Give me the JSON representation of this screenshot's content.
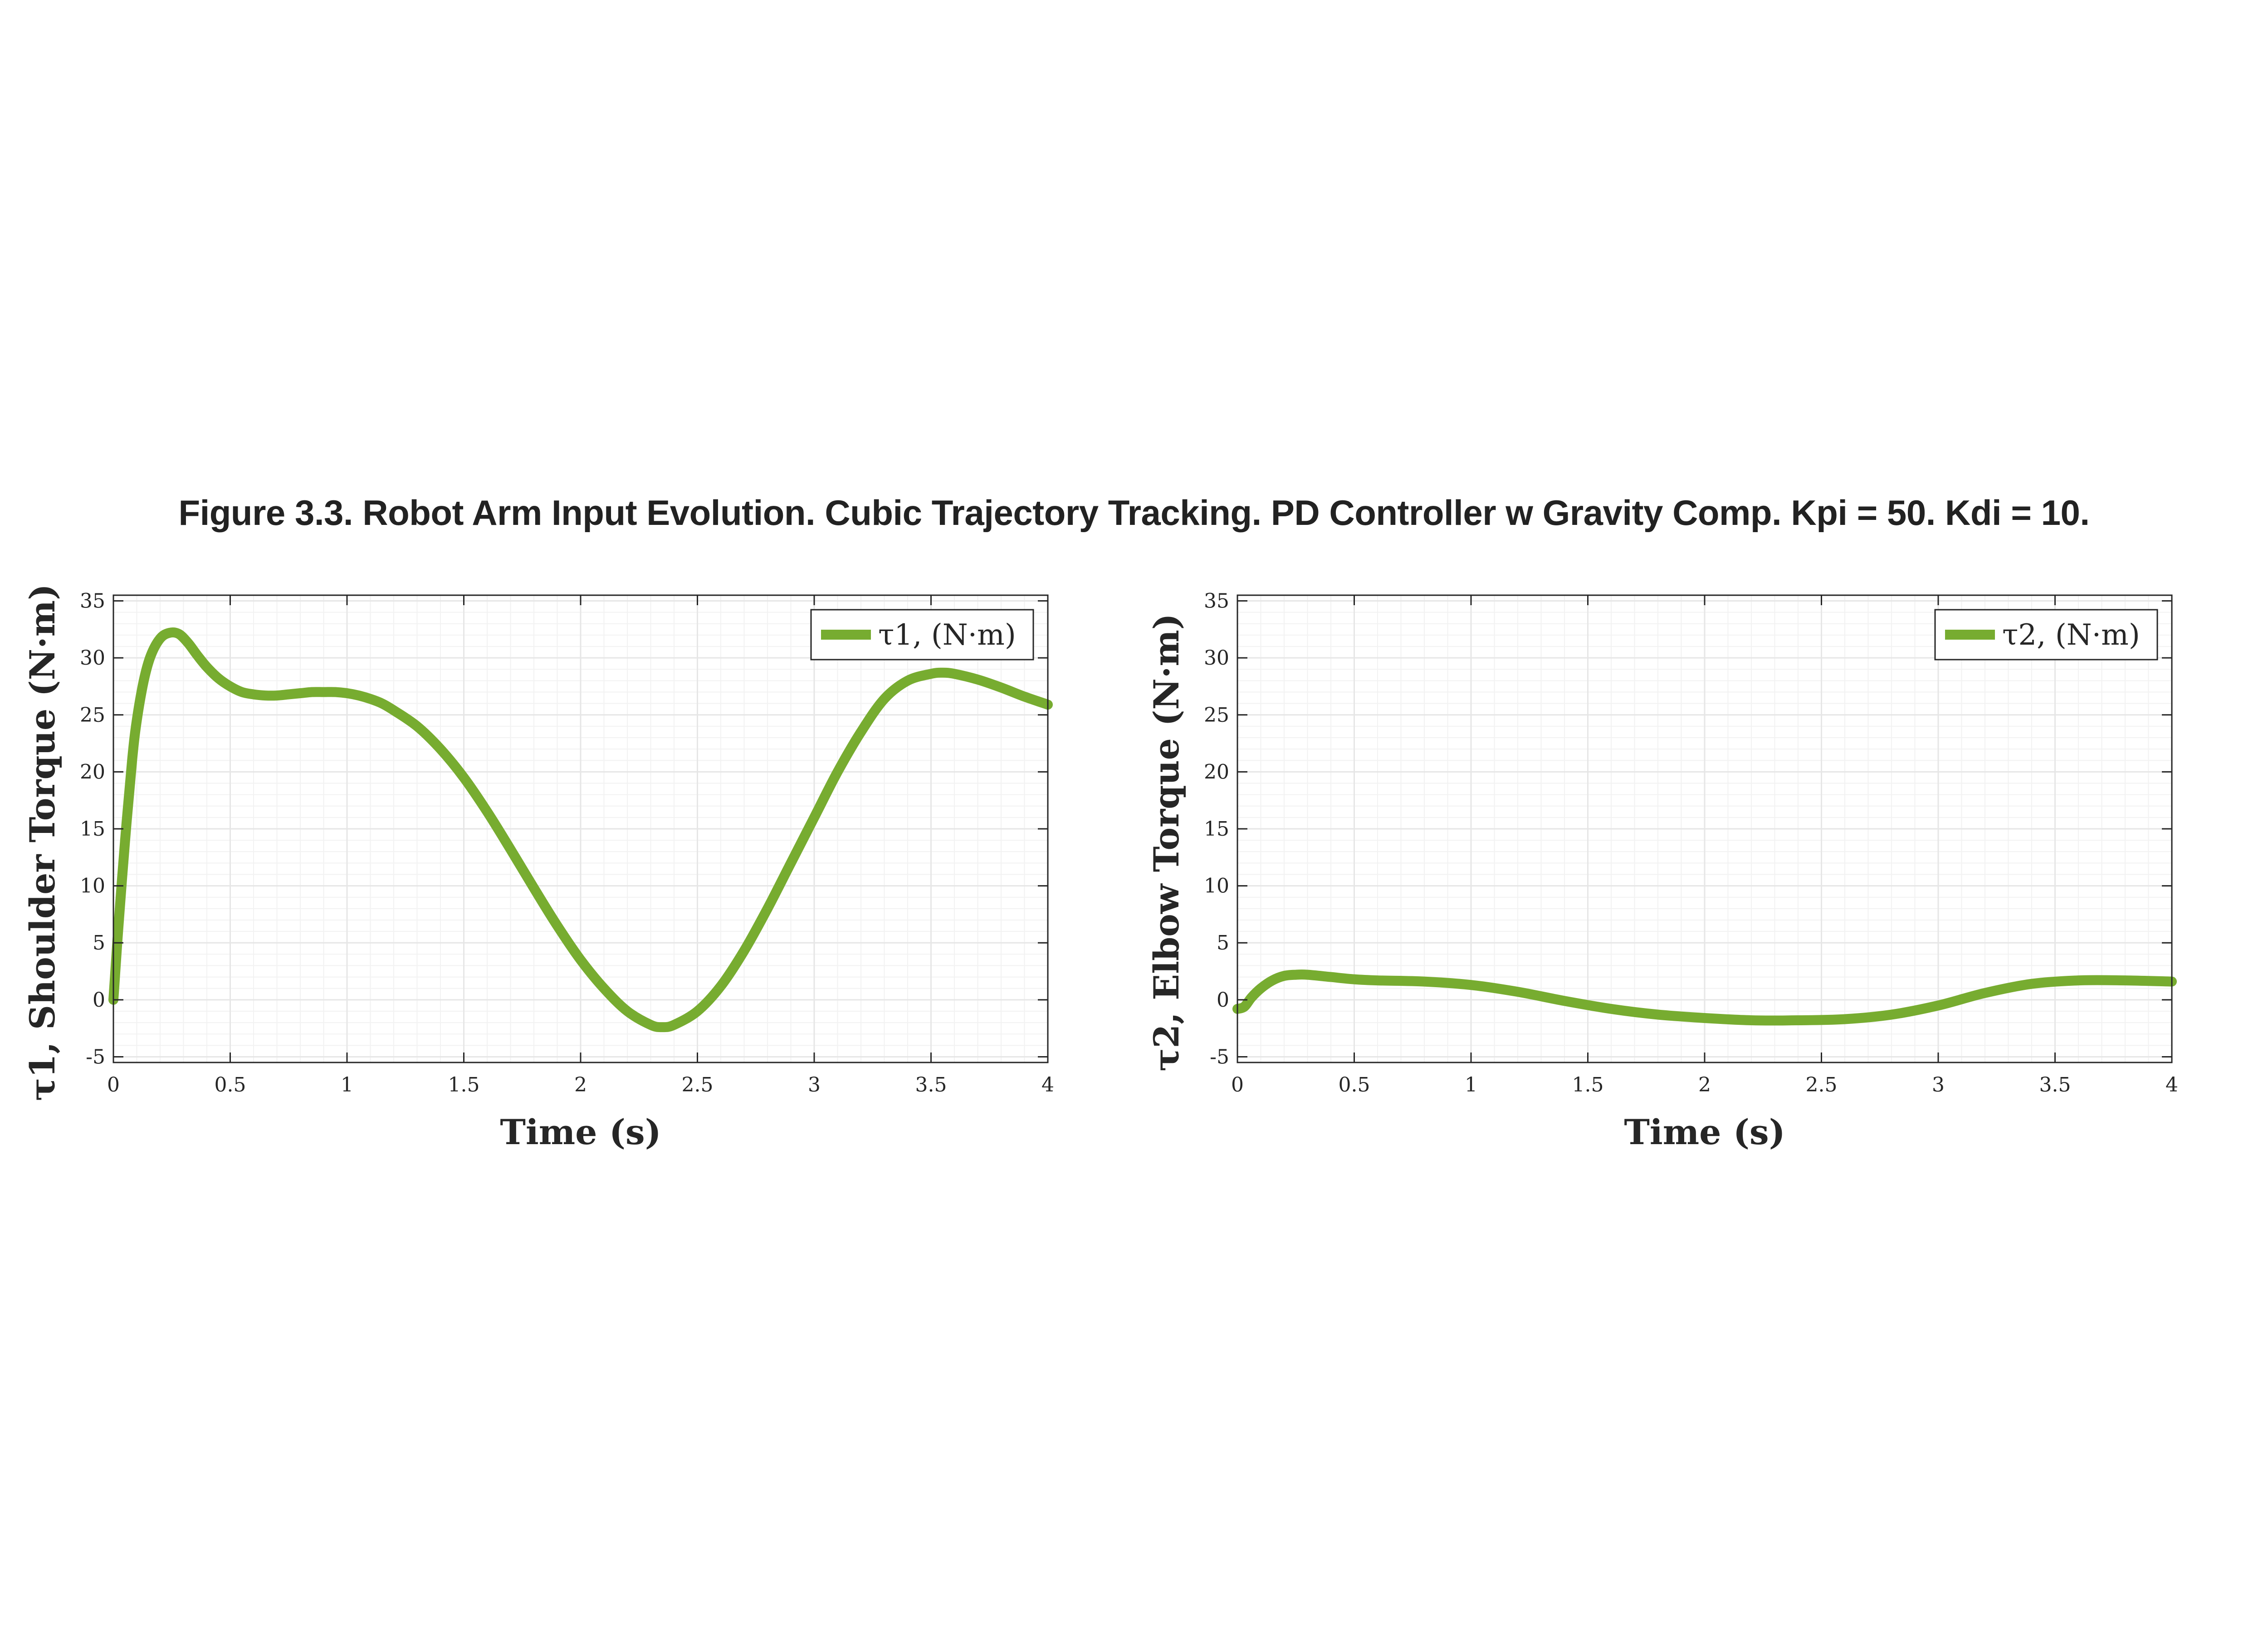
{
  "figure": {
    "title": "Figure 3.3. Robot Arm Input Evolution. Cubic Trajectory Tracking. PD Controller w Gravity Comp. Kpi = 50. Kdi = 10."
  },
  "colors": {
    "line": "#77ac30",
    "axes": "#262626",
    "grid": "#e6e6e6",
    "minor_grid": "#f2f2f2"
  },
  "chart_data": [
    {
      "type": "line",
      "xlabel": "Time (s)",
      "ylabel": "τ1, Shoulder Torque (N·m)",
      "xlim": [
        0,
        4
      ],
      "ylim": [
        -5.5,
        35.5
      ],
      "xticks": [
        0,
        0.5,
        1,
        1.5,
        2,
        2.5,
        3,
        3.5,
        4
      ],
      "xtick_labels": [
        "0",
        "0.5",
        "1",
        "1.5",
        "2",
        "2.5",
        "3",
        "3.5",
        "4"
      ],
      "yticks": [
        -5,
        0,
        5,
        10,
        15,
        20,
        25,
        30,
        35
      ],
      "ytick_labels": [
        "-5",
        "0",
        "5",
        "10",
        "15",
        "20",
        "25",
        "30",
        "35"
      ],
      "grid": true,
      "minor_grid": true,
      "legend_position": "top-right",
      "series": [
        {
          "name": "τ1, (N·m)",
          "x": [
            0,
            0.02,
            0.05,
            0.08,
            0.1,
            0.13,
            0.16,
            0.2,
            0.24,
            0.28,
            0.32,
            0.36,
            0.4,
            0.45,
            0.5,
            0.55,
            0.6,
            0.65,
            0.7,
            0.75,
            0.8,
            0.85,
            0.9,
            0.95,
            1.0,
            1.05,
            1.1,
            1.15,
            1.2,
            1.3,
            1.4,
            1.5,
            1.6,
            1.7,
            1.8,
            1.9,
            2.0,
            2.1,
            2.2,
            2.3,
            2.35,
            2.4,
            2.5,
            2.6,
            2.7,
            2.8,
            2.9,
            3.0,
            3.1,
            3.2,
            3.3,
            3.4,
            3.5,
            3.55,
            3.6,
            3.7,
            3.8,
            3.9,
            4.0
          ],
          "y": [
            0,
            6,
            14,
            21,
            24.5,
            28,
            30.2,
            31.7,
            32.2,
            32.1,
            31.3,
            30.2,
            29.2,
            28.2,
            27.5,
            27.0,
            26.8,
            26.7,
            26.7,
            26.8,
            26.9,
            27.0,
            27.0,
            27.0,
            26.9,
            26.7,
            26.4,
            26.0,
            25.4,
            24.0,
            22.0,
            19.5,
            16.5,
            13.2,
            9.8,
            6.5,
            3.5,
            1.0,
            -1.0,
            -2.2,
            -2.4,
            -2.2,
            -1.0,
            1.2,
            4.3,
            8.0,
            12.0,
            16.0,
            20.0,
            23.5,
            26.4,
            28.0,
            28.6,
            28.7,
            28.6,
            28.1,
            27.4,
            26.6,
            25.9
          ]
        }
      ]
    },
    {
      "type": "line",
      "xlabel": "Time (s)",
      "ylabel": "τ2, Elbow Torque (N·m)",
      "xlim": [
        0,
        4
      ],
      "ylim": [
        -5.5,
        35.5
      ],
      "xticks": [
        0,
        0.5,
        1,
        1.5,
        2,
        2.5,
        3,
        3.5,
        4
      ],
      "xtick_labels": [
        "0",
        "0.5",
        "1",
        "1.5",
        "2",
        "2.5",
        "3",
        "3.5",
        "4"
      ],
      "yticks": [
        -5,
        0,
        5,
        10,
        15,
        20,
        25,
        30,
        35
      ],
      "ytick_labels": [
        "-5",
        "0",
        "5",
        "10",
        "15",
        "20",
        "25",
        "30",
        "35"
      ],
      "grid": true,
      "minor_grid": true,
      "legend_position": "top-right",
      "series": [
        {
          "name": "τ2, (N·m)",
          "x": [
            0,
            0.03,
            0.06,
            0.1,
            0.15,
            0.2,
            0.25,
            0.3,
            0.4,
            0.5,
            0.6,
            0.8,
            1.0,
            1.2,
            1.4,
            1.6,
            1.8,
            2.0,
            2.2,
            2.4,
            2.6,
            2.8,
            3.0,
            3.2,
            3.4,
            3.6,
            3.8,
            4.0
          ],
          "y": [
            -0.8,
            -0.6,
            0.2,
            1.0,
            1.7,
            2.1,
            2.2,
            2.2,
            2.0,
            1.8,
            1.7,
            1.6,
            1.3,
            0.7,
            -0.1,
            -0.8,
            -1.3,
            -1.6,
            -1.8,
            -1.8,
            -1.7,
            -1.3,
            -0.5,
            0.6,
            1.4,
            1.7,
            1.7,
            1.6
          ]
        }
      ]
    }
  ]
}
